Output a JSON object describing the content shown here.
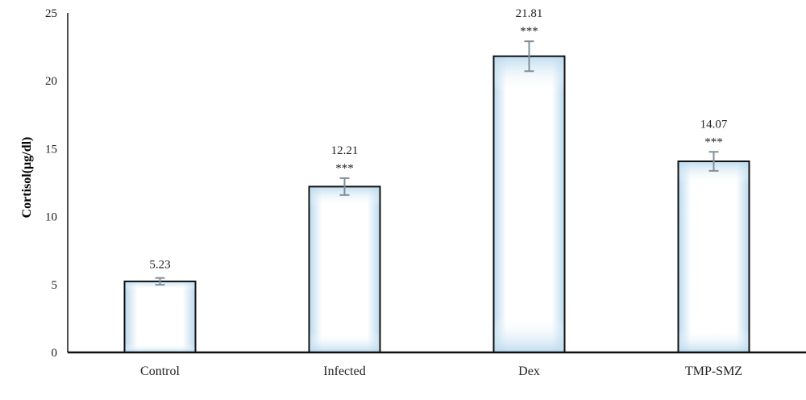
{
  "chart_data": {
    "type": "bar",
    "categories": [
      "Control",
      "Infected",
      "Dex",
      "TMP-SMZ"
    ],
    "values": [
      5.23,
      12.21,
      21.81,
      14.07
    ],
    "data_labels": [
      "5.23",
      "12.21",
      "21.81",
      "14.07"
    ],
    "error": [
      0.25,
      0.62,
      1.1,
      0.7
    ],
    "significance": [
      "",
      "***",
      "***",
      "***"
    ],
    "ylabel": "Cortisol(µg/dl)",
    "xlabel": "",
    "ylim": [
      0,
      25
    ],
    "yticks": [
      0,
      5,
      10,
      15,
      20,
      25
    ],
    "grid": false,
    "legend": "none",
    "colors": {
      "bar_edge": "#111111",
      "bar_fill_center": "#ffffff",
      "bar_fill_edge": "#b9d9ee",
      "error_bar": "#7f8f99",
      "axis": "#111111"
    }
  }
}
